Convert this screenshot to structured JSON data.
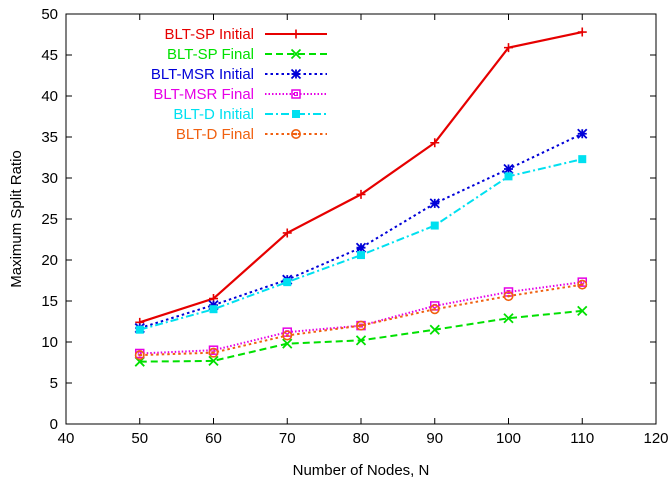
{
  "chart_data": {
    "type": "line",
    "xlabel": "Number of Nodes, N",
    "ylabel": "Maximum Split Ratio",
    "xlim": [
      40,
      120
    ],
    "ylim": [
      0,
      50
    ],
    "xticks": [
      40,
      50,
      60,
      70,
      80,
      90,
      100,
      110,
      120
    ],
    "yticks": [
      0,
      5,
      10,
      15,
      20,
      25,
      30,
      35,
      40,
      45,
      50
    ],
    "grid": false,
    "legend_position": "top-left",
    "x": [
      50,
      60,
      70,
      80,
      90,
      100,
      110
    ],
    "series": [
      {
        "name": "BLT-SP Initial",
        "color": "#e60000",
        "dash": "solid",
        "marker": "plus",
        "values": [
          12.4,
          15.3,
          23.3,
          28.0,
          34.3,
          45.9,
          47.8
        ]
      },
      {
        "name": "BLT-SP Final",
        "color": "#00e000",
        "dash": "dashed",
        "marker": "cross",
        "values": [
          7.6,
          7.7,
          9.8,
          10.2,
          11.5,
          12.9,
          13.8
        ]
      },
      {
        "name": "BLT-MSR Initial",
        "color": "#0000d8",
        "dash": "dotted",
        "marker": "star",
        "values": [
          11.7,
          14.5,
          17.6,
          21.5,
          26.9,
          31.1,
          35.4
        ]
      },
      {
        "name": "BLT-MSR Final",
        "color": "#e600e6",
        "dash": "finedotted",
        "marker": "square-open",
        "values": [
          8.6,
          9.0,
          11.2,
          12.0,
          14.4,
          16.1,
          17.3
        ]
      },
      {
        "name": "BLT-D Initial",
        "color": "#00e0f0",
        "dash": "dashdot",
        "marker": "square-filled",
        "values": [
          11.5,
          14.0,
          17.3,
          20.6,
          24.2,
          30.2,
          32.3
        ]
      },
      {
        "name": "BLT-D Final",
        "color": "#f06010",
        "dash": "dotted",
        "marker": "circle-open",
        "values": [
          8.4,
          8.7,
          10.8,
          12.0,
          14.0,
          15.6,
          17.0
        ]
      }
    ]
  }
}
